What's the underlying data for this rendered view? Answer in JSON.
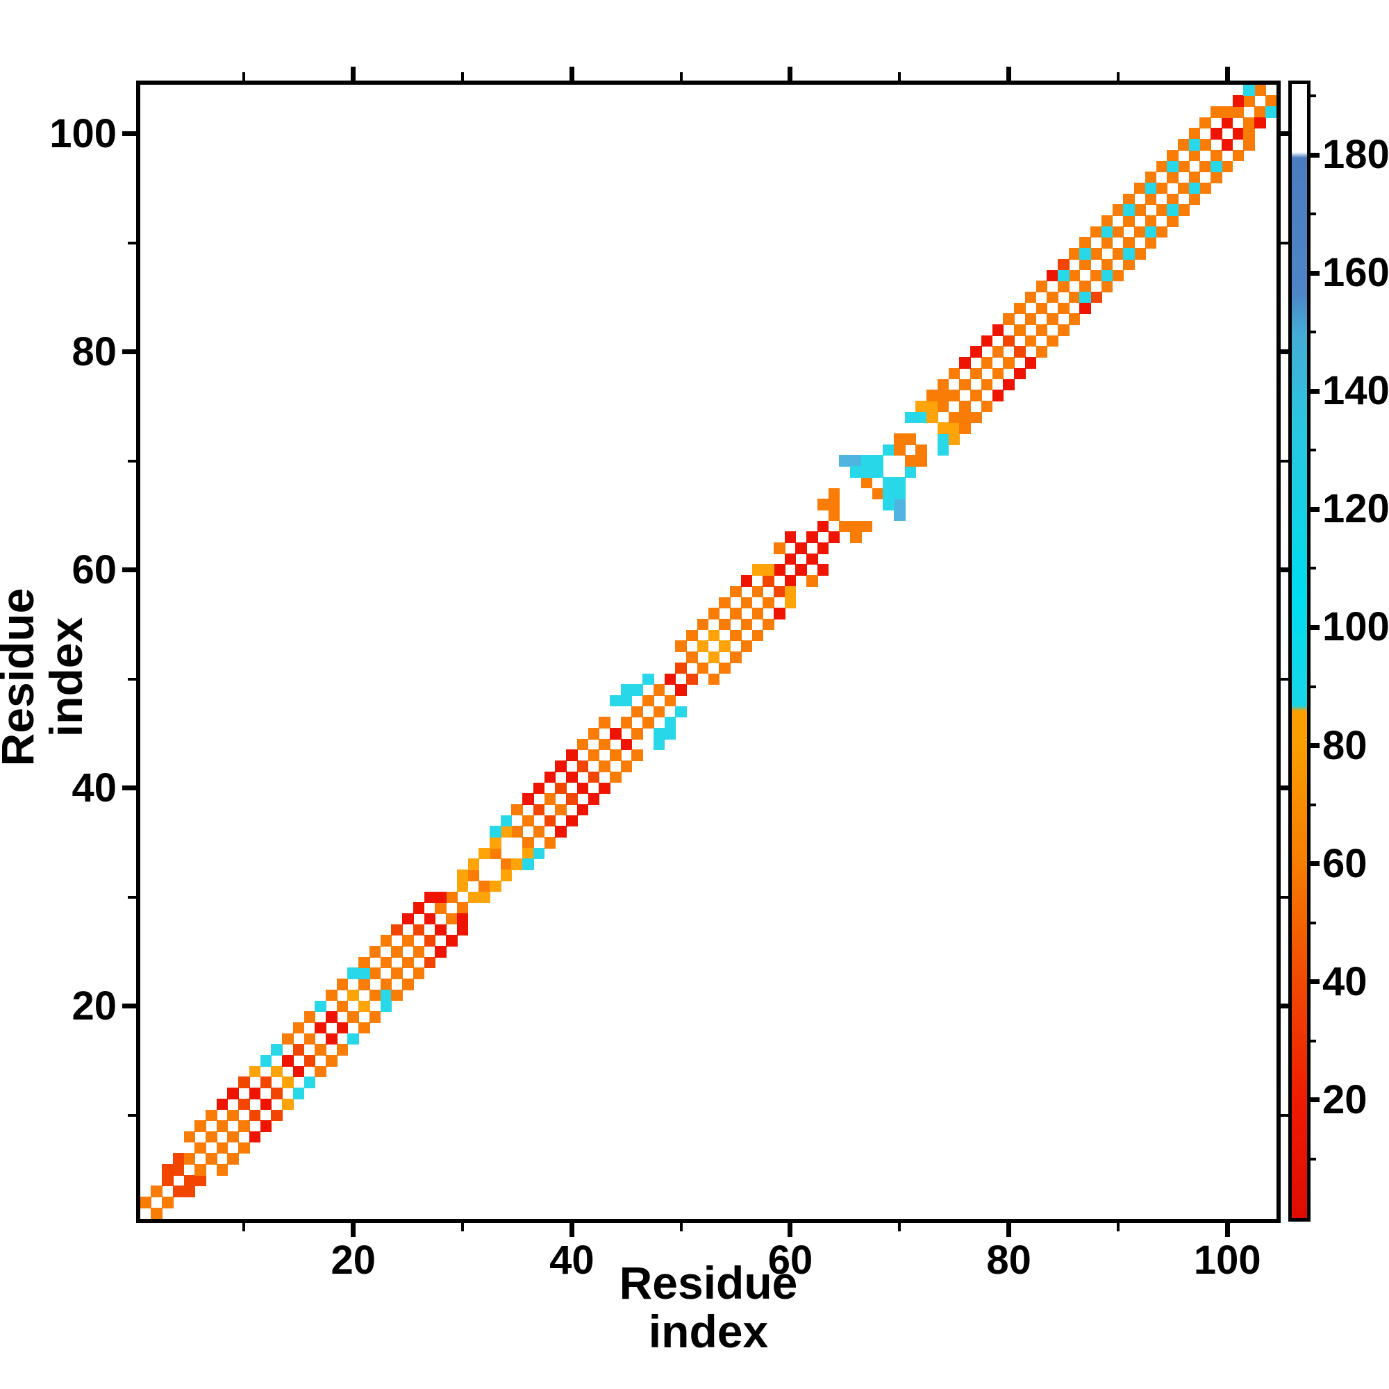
{
  "figure": {
    "background": "#FFFFFF",
    "axis_color": "#000000",
    "xlabel": "Residue index",
    "ylabel": "Residue index"
  },
  "chart_data": {
    "type": "heatmap",
    "title": "",
    "xlabel": "Residue index",
    "ylabel": "Residue index",
    "n_residues": 104,
    "x_range": [
      0.5,
      104.5
    ],
    "y_range": [
      0.5,
      104.5
    ],
    "x_ticks": [
      20,
      40,
      60,
      80,
      100
    ],
    "y_ticks": [
      20,
      40,
      60,
      80,
      100
    ],
    "minor_ticks": [
      10,
      30,
      50,
      70,
      90
    ],
    "grid": false,
    "symmetric": true,
    "palette": {
      "R": "#EE1400",
      "RO": "#F24500",
      "O": "#F97C06",
      "A": "#FFA408",
      "C": "#29D8E8",
      "BL": "#4FB4E0"
    },
    "value_ranges": {
      "R": "≈10–30",
      "RO": "≈35–48",
      "O": "≈55–75",
      "A": "≈78–85",
      "C": "≈95–135",
      "BL": "≈150–175"
    },
    "colorbar": {
      "range": [
        0,
        192
      ],
      "ticks": [
        20,
        40,
        60,
        80,
        100,
        120,
        140,
        160,
        180
      ],
      "minor_ticks": [
        10,
        30,
        50,
        70,
        90,
        110,
        130,
        150,
        170,
        190
      ],
      "gradient": [
        [
          0.0,
          "#DD0C00"
        ],
        [
          0.1,
          "#EE1A00"
        ],
        [
          0.21,
          "#F14A00"
        ],
        [
          0.31,
          "#F67C00"
        ],
        [
          0.42,
          "#FB9E00"
        ],
        [
          0.447,
          "#FB9E00"
        ],
        [
          0.452,
          "#18D6EA"
        ],
        [
          0.55,
          "#00DCEE"
        ],
        [
          0.7,
          "#2BC6E0"
        ],
        [
          0.78,
          "#45ACD6"
        ],
        [
          0.815,
          "#4C86C8"
        ],
        [
          0.935,
          "#4B7CC0"
        ],
        [
          0.94,
          "#FFFFFF"
        ],
        [
          1.0,
          "#FFFFFF"
        ]
      ]
    },
    "cells": [
      [
        1,
        2,
        "O"
      ],
      [
        2,
        3,
        "O"
      ],
      [
        3,
        4,
        "RO"
      ],
      [
        3,
        5,
        "RO"
      ],
      [
        4,
        5,
        "RO"
      ],
      [
        4,
        6,
        "RO"
      ],
      [
        5,
        6,
        "O"
      ],
      [
        6,
        7,
        "O"
      ],
      [
        7,
        8,
        "O"
      ],
      [
        8,
        9,
        "O"
      ],
      [
        5,
        8,
        "O"
      ],
      [
        6,
        9,
        "O"
      ],
      [
        7,
        10,
        "O"
      ],
      [
        9,
        10,
        "O"
      ],
      [
        10,
        11,
        "RO"
      ],
      [
        11,
        12,
        "R"
      ],
      [
        12,
        13,
        "RO"
      ],
      [
        13,
        14,
        "A"
      ],
      [
        14,
        15,
        "R"
      ],
      [
        15,
        16,
        "RO"
      ],
      [
        8,
        11,
        "R"
      ],
      [
        9,
        12,
        "R"
      ],
      [
        10,
        13,
        "RO"
      ],
      [
        11,
        14,
        "A"
      ],
      [
        12,
        15,
        "C"
      ],
      [
        13,
        16,
        "C"
      ],
      [
        16,
        17,
        "O"
      ],
      [
        17,
        18,
        "R"
      ],
      [
        18,
        19,
        "R"
      ],
      [
        19,
        20,
        "O"
      ],
      [
        20,
        21,
        "A"
      ],
      [
        21,
        22,
        "O"
      ],
      [
        22,
        23,
        "O"
      ],
      [
        23,
        24,
        "O"
      ],
      [
        14,
        17,
        "O"
      ],
      [
        15,
        18,
        "O"
      ],
      [
        16,
        19,
        "O"
      ],
      [
        17,
        20,
        "C"
      ],
      [
        18,
        21,
        "O"
      ],
      [
        19,
        22,
        "O"
      ],
      [
        20,
        23,
        "C"
      ],
      [
        21,
        23,
        "C"
      ],
      [
        21,
        24,
        "O"
      ],
      [
        24,
        25,
        "O"
      ],
      [
        25,
        26,
        "O"
      ],
      [
        26,
        27,
        "RO"
      ],
      [
        27,
        28,
        "R"
      ],
      [
        28,
        29,
        "O"
      ],
      [
        29,
        30,
        "O"
      ],
      [
        22,
        25,
        "O"
      ],
      [
        23,
        26,
        "O"
      ],
      [
        24,
        27,
        "RO"
      ],
      [
        25,
        28,
        "R"
      ],
      [
        26,
        29,
        "R"
      ],
      [
        27,
        30,
        "R"
      ],
      [
        28,
        30,
        "R"
      ],
      [
        30,
        31,
        "A"
      ],
      [
        31,
        32,
        "O"
      ],
      [
        33,
        34,
        "O"
      ],
      [
        35,
        36,
        "O"
      ],
      [
        30,
        32,
        "A"
      ],
      [
        31,
        33,
        "A"
      ],
      [
        32,
        34,
        "A"
      ],
      [
        33,
        35,
        "A"
      ],
      [
        34,
        36,
        "A"
      ],
      [
        33,
        36,
        "C"
      ],
      [
        34,
        37,
        "C"
      ],
      [
        36,
        37,
        "O"
      ],
      [
        37,
        38,
        "RO"
      ],
      [
        38,
        39,
        "O"
      ],
      [
        39,
        40,
        "RO"
      ],
      [
        40,
        41,
        "R"
      ],
      [
        41,
        42,
        "RO"
      ],
      [
        42,
        43,
        "O"
      ],
      [
        43,
        44,
        "O"
      ],
      [
        35,
        38,
        "O"
      ],
      [
        36,
        39,
        "R"
      ],
      [
        37,
        40,
        "R"
      ],
      [
        38,
        41,
        "R"
      ],
      [
        39,
        42,
        "R"
      ],
      [
        40,
        43,
        "R"
      ],
      [
        41,
        44,
        "O"
      ],
      [
        44,
        45,
        "R"
      ],
      [
        45,
        46,
        "O"
      ],
      [
        46,
        47,
        "O"
      ],
      [
        47,
        48,
        "O"
      ],
      [
        48,
        49,
        "O"
      ],
      [
        49,
        50,
        "R"
      ],
      [
        50,
        51,
        "RO"
      ],
      [
        51,
        52,
        "O"
      ],
      [
        42,
        45,
        "O"
      ],
      [
        43,
        46,
        "O"
      ],
      [
        44,
        48,
        "C"
      ],
      [
        45,
        48,
        "C"
      ],
      [
        45,
        49,
        "C"
      ],
      [
        46,
        49,
        "C"
      ],
      [
        47,
        50,
        "C"
      ],
      [
        52,
        53,
        "A"
      ],
      [
        53,
        54,
        "A"
      ],
      [
        54,
        55,
        "O"
      ],
      [
        55,
        56,
        "O"
      ],
      [
        56,
        57,
        "O"
      ],
      [
        57,
        58,
        "O"
      ],
      [
        58,
        59,
        "RO"
      ],
      [
        59,
        60,
        "R"
      ],
      [
        50,
        53,
        "O"
      ],
      [
        51,
        54,
        "O"
      ],
      [
        52,
        55,
        "O"
      ],
      [
        53,
        56,
        "O"
      ],
      [
        54,
        57,
        "O"
      ],
      [
        55,
        58,
        "O"
      ],
      [
        56,
        59,
        "R"
      ],
      [
        57,
        60,
        "A"
      ],
      [
        58,
        60,
        "A"
      ],
      [
        60,
        61,
        "R"
      ],
      [
        61,
        62,
        "R"
      ],
      [
        62,
        63,
        "R"
      ],
      [
        60,
        63,
        "R"
      ],
      [
        59,
        62,
        "O"
      ],
      [
        63,
        64,
        "R"
      ],
      [
        64,
        65,
        "O"
      ],
      [
        63,
        66,
        "O"
      ],
      [
        64,
        66,
        "O"
      ],
      [
        64,
        67,
        "O"
      ],
      [
        67,
        68,
        "O"
      ],
      [
        65,
        70,
        "BL"
      ],
      [
        66,
        70,
        "BL"
      ],
      [
        67,
        70,
        "C"
      ],
      [
        68,
        70,
        "C"
      ],
      [
        66,
        69,
        "C"
      ],
      [
        67,
        69,
        "C"
      ],
      [
        68,
        69,
        "C"
      ],
      [
        69,
        71,
        "C"
      ],
      [
        70,
        71,
        "O"
      ],
      [
        70,
        72,
        "O"
      ],
      [
        71,
        72,
        "O"
      ],
      [
        71,
        74,
        "C"
      ],
      [
        72,
        74,
        "C"
      ],
      [
        73,
        74,
        "A"
      ],
      [
        72,
        75,
        "A"
      ],
      [
        73,
        75,
        "A"
      ],
      [
        74,
        75,
        "O"
      ],
      [
        74,
        76,
        "O"
      ],
      [
        75,
        76,
        "O"
      ],
      [
        76,
        77,
        "O"
      ],
      [
        77,
        78,
        "O"
      ],
      [
        78,
        79,
        "O"
      ],
      [
        79,
        80,
        "O"
      ],
      [
        80,
        81,
        "RO"
      ],
      [
        81,
        82,
        "O"
      ],
      [
        82,
        83,
        "O"
      ],
      [
        83,
        84,
        "O"
      ],
      [
        73,
        76,
        "O"
      ],
      [
        74,
        77,
        "O"
      ],
      [
        75,
        78,
        "O"
      ],
      [
        76,
        79,
        "R"
      ],
      [
        77,
        80,
        "R"
      ],
      [
        78,
        81,
        "R"
      ],
      [
        79,
        82,
        "R"
      ],
      [
        80,
        83,
        "O"
      ],
      [
        81,
        84,
        "O"
      ],
      [
        84,
        85,
        "O"
      ],
      [
        85,
        86,
        "O"
      ],
      [
        86,
        87,
        "O"
      ],
      [
        87,
        88,
        "O"
      ],
      [
        88,
        89,
        "O"
      ],
      [
        89,
        90,
        "O"
      ],
      [
        90,
        91,
        "O"
      ],
      [
        91,
        92,
        "O"
      ],
      [
        92,
        93,
        "O"
      ],
      [
        93,
        94,
        "O"
      ],
      [
        94,
        95,
        "O"
      ],
      [
        95,
        96,
        "O"
      ],
      [
        96,
        97,
        "O"
      ],
      [
        97,
        98,
        "O"
      ],
      [
        98,
        99,
        "O"
      ],
      [
        99,
        100,
        "R"
      ],
      [
        100,
        101,
        "R"
      ],
      [
        101,
        102,
        "O"
      ],
      [
        102,
        103,
        "O"
      ],
      [
        103,
        104,
        "O"
      ],
      [
        82,
        85,
        "O"
      ],
      [
        83,
        86,
        "O"
      ],
      [
        84,
        87,
        "R"
      ],
      [
        85,
        88,
        "RO"
      ],
      [
        86,
        89,
        "O"
      ],
      [
        87,
        90,
        "O"
      ],
      [
        88,
        91,
        "O"
      ],
      [
        89,
        92,
        "O"
      ],
      [
        90,
        93,
        "O"
      ],
      [
        91,
        94,
        "O"
      ],
      [
        92,
        95,
        "O"
      ],
      [
        93,
        96,
        "O"
      ],
      [
        94,
        97,
        "O"
      ],
      [
        95,
        98,
        "O"
      ],
      [
        96,
        99,
        "O"
      ],
      [
        97,
        100,
        "O"
      ],
      [
        98,
        101,
        "O"
      ],
      [
        99,
        102,
        "O"
      ],
      [
        100,
        102,
        "O"
      ],
      [
        85,
        87,
        "C"
      ],
      [
        87,
        89,
        "C"
      ],
      [
        89,
        91,
        "C"
      ],
      [
        91,
        93,
        "C"
      ],
      [
        93,
        95,
        "C"
      ],
      [
        95,
        97,
        "C"
      ],
      [
        97,
        99,
        "C"
      ],
      [
        101,
        103,
        "R"
      ],
      [
        102,
        104,
        "C"
      ]
    ]
  }
}
